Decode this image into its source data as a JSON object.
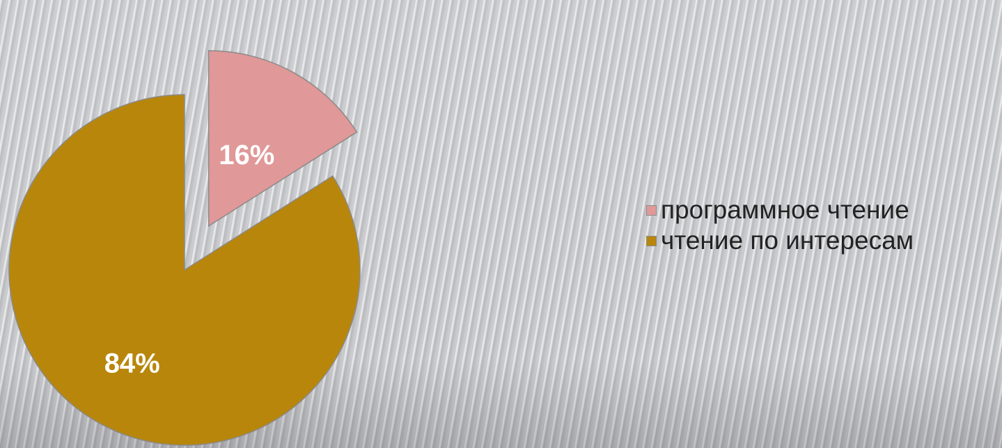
{
  "chart_data": {
    "type": "pie",
    "title": "",
    "slices": [
      {
        "label": "программное чтение",
        "value": 16,
        "display": "16%",
        "color": "#e09898",
        "exploded": true
      },
      {
        "label": "чтение по интересам",
        "value": 84,
        "display": "84%",
        "color": "#b8860b",
        "exploded": false
      }
    ],
    "legend_position": "right"
  },
  "legend": {
    "items": [
      {
        "label": "программное чтение",
        "color": "#e09898"
      },
      {
        "label": "чтение по интересам",
        "color": "#b8860b"
      }
    ]
  }
}
